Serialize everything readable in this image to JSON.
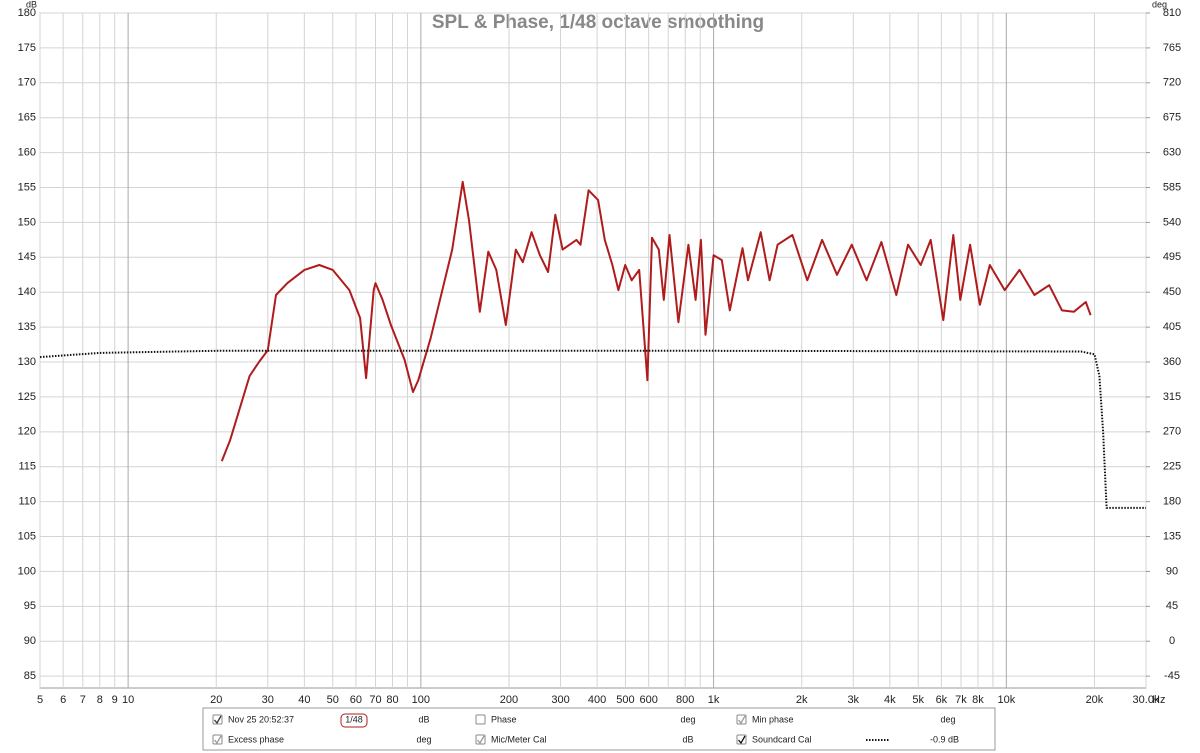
{
  "chart_data": {
    "type": "line",
    "title": "SPL & Phase, 1/48 octave smoothing",
    "y_unit": "dB",
    "y2_unit": "deg",
    "x_unit": "Hz",
    "log_x": true,
    "grid": true,
    "xlim": [
      5,
      30000
    ],
    "xticks": [
      5,
      6,
      7,
      8,
      9,
      10,
      20,
      30,
      40,
      50,
      60,
      70,
      80,
      100,
      200,
      300,
      400,
      500,
      600,
      800,
      {
        "value": 1000,
        "label": "1k"
      },
      {
        "value": 2000,
        "label": "2k"
      },
      {
        "value": 3000,
        "label": "3k"
      },
      {
        "value": 4000,
        "label": "4k"
      },
      {
        "value": 5000,
        "label": "5k"
      },
      {
        "value": 6000,
        "label": "6k"
      },
      {
        "value": 7000,
        "label": "7k"
      },
      {
        "value": 8000,
        "label": "8k"
      },
      {
        "value": 10000,
        "label": "10k"
      },
      {
        "value": 20000,
        "label": "20k"
      },
      {
        "value": 30000,
        "label": "30.0k"
      }
    ],
    "xgrid": [
      90,
      700,
      900,
      9000
    ],
    "ylim": [
      83.3,
      180
    ],
    "yticks": [
      85,
      90,
      95,
      100,
      105,
      110,
      115,
      120,
      125,
      130,
      135,
      140,
      145,
      150,
      155,
      160,
      165,
      170,
      175,
      180
    ],
    "y2lim": [
      -60.3,
      810
    ],
    "y2ticks": [
      -45,
      0,
      45,
      90,
      135,
      180,
      225,
      270,
      315,
      360,
      405,
      450,
      495,
      540,
      585,
      630,
      675,
      720,
      765,
      810
    ],
    "series": [
      {
        "name": "Nov 25 20:52:37",
        "color": "#b01c1c",
        "style": "solid",
        "x": [
          20.9,
          22.3,
          26,
          28,
          30,
          32,
          35,
          40,
          45,
          50,
          57,
          62,
          65,
          69,
          70,
          74,
          79,
          88,
          94,
          98,
          108,
          128,
          139,
          146,
          159,
          170,
          181,
          195,
          211,
          223,
          239,
          255,
          272,
          288,
          305,
          340,
          351,
          374,
          403,
          425,
          451,
          473,
          499,
          525,
          557,
          594,
          616,
          650,
          676,
          707,
          758,
          820,
          868,
          905,
          938,
          1000,
          1067,
          1136,
          1255,
          1311,
          1449,
          1554,
          1654,
          1859,
          2090,
          2348,
          2639,
          2965,
          3332,
          3744,
          4207,
          4616,
          5099,
          5515,
          6093,
          6588,
          6960,
          7520,
          8126,
          8780,
          9870,
          11090,
          12470,
          14010,
          15500,
          17000,
          18690,
          19400
        ],
        "values": [
          115.8,
          118.8,
          128,
          130,
          131.7,
          139.6,
          141.3,
          143.2,
          143.9,
          143.2,
          140.3,
          136.3,
          127.7,
          140.3,
          141.3,
          138.9,
          135.3,
          130.3,
          125.7,
          127.4,
          133.4,
          146.1,
          155.8,
          150.3,
          137.2,
          145.8,
          143.2,
          135.3,
          146.1,
          144.3,
          148.6,
          145.3,
          142.9,
          151.1,
          146.1,
          147.5,
          146.8,
          154.6,
          153.2,
          147.5,
          143.9,
          140.3,
          143.9,
          141.7,
          143.2,
          127.4,
          147.8,
          146.1,
          138.9,
          148.2,
          135.7,
          146.8,
          138.9,
          147.5,
          133.9,
          145.3,
          144.6,
          137.4,
          146.3,
          141.7,
          148.6,
          141.7,
          146.8,
          148.2,
          141.7,
          147.5,
          142.5,
          146.8,
          141.7,
          147.2,
          139.6,
          146.8,
          143.9,
          147.5,
          136,
          148.2,
          138.9,
          146.8,
          138.2,
          143.9,
          140.3,
          143.2,
          139.6,
          141,
          137.4,
          137.2,
          138.6,
          136.7
        ]
      },
      {
        "name": "Soundcard Cal",
        "color": "#111111",
        "style": "dotted",
        "x": [
          5,
          8,
          20,
          1000,
          18000,
          20000,
          20800,
          21400,
          22000,
          30000
        ],
        "values": [
          130.7,
          131.3,
          131.6,
          131.6,
          131.5,
          131.1,
          128,
          120,
          109.1,
          109.1
        ]
      }
    ],
    "panel": [
      [
        {
          "label": "Nov 25 20:52:37",
          "smoothing": "1/48",
          "unit": "dB",
          "checked": true,
          "color": "#b01c1c"
        },
        {
          "label": "Phase",
          "unit": "deg",
          "checked": false,
          "color": "#b01c1c"
        },
        {
          "label": "Min phase",
          "unit": "deg",
          "checked": true,
          "color": "#999999"
        }
      ],
      [
        {
          "label": "Excess phase",
          "unit": "deg",
          "checked": true,
          "color": "#999999"
        },
        {
          "label": "Mic/Meter Cal",
          "unit": "dB",
          "checked": true,
          "color": "#999999"
        },
        {
          "label": "Soundcard Cal",
          "unit": "-0.9 dB",
          "checked": true,
          "color": "#111111"
        }
      ]
    ]
  }
}
